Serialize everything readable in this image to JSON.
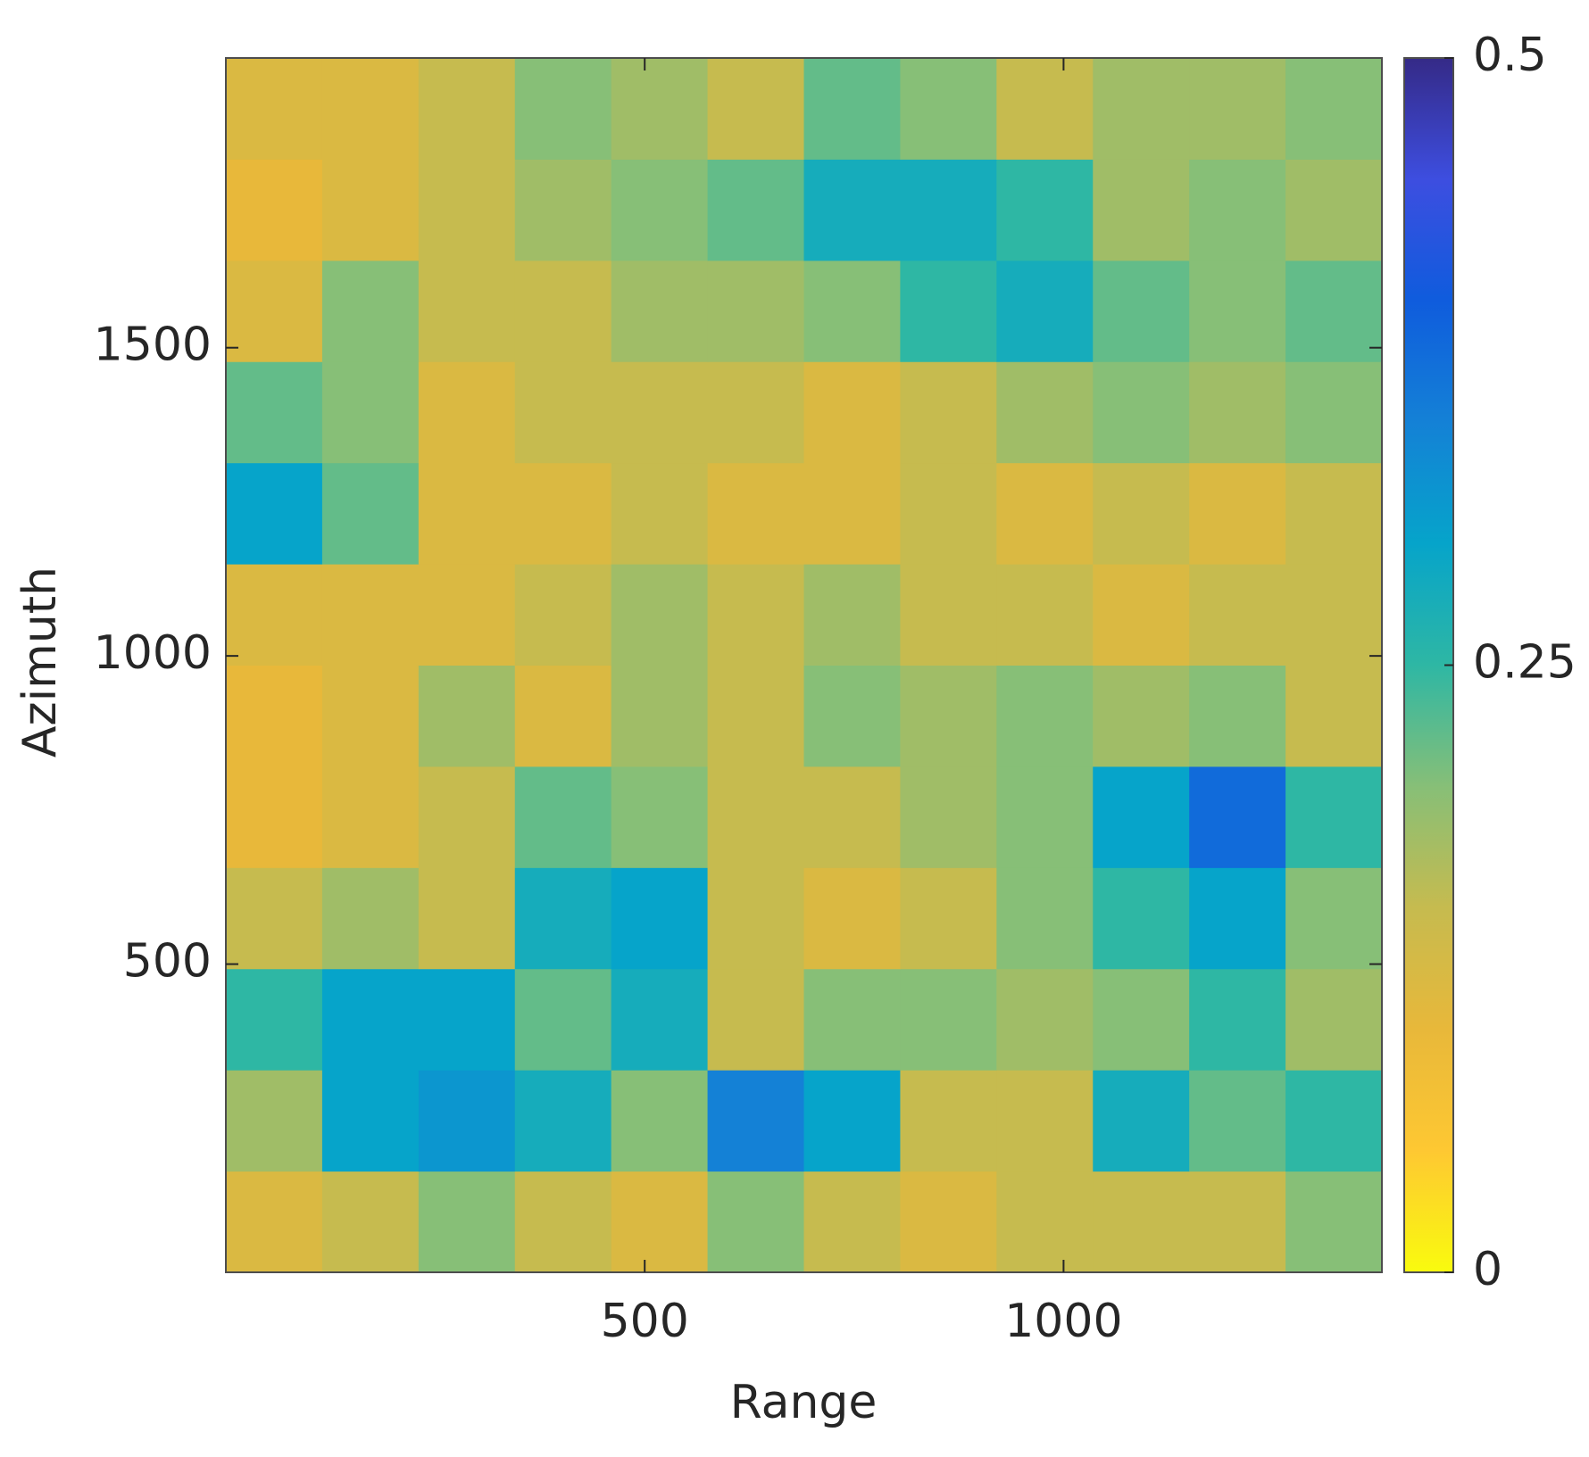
{
  "chart_data": {
    "type": "heatmap",
    "x_label": "Range",
    "y_label": "Azimuth",
    "xlim": [
      0,
      1380
    ],
    "ylim": [
      0,
      1970
    ],
    "xticks": [
      500,
      1000
    ],
    "yticks": [
      500,
      1000,
      1500
    ],
    "clim": [
      0,
      0.5
    ],
    "cticks": [
      0,
      0.25,
      0.5
    ],
    "colormap": [
      "#f9fb0e",
      "#fec832",
      "#e8b83a",
      "#c6bb4f",
      "#87bf77",
      "#2eb7a4",
      "#06a4ca",
      "#1481d6",
      "#0f5cdd",
      "#3d4ee0",
      "#352a87"
    ],
    "z": [
      [
        0.12,
        0.15,
        0.2,
        0.15,
        0.12,
        0.2,
        0.15,
        0.12,
        0.15,
        0.15,
        0.15,
        0.2
      ],
      [
        0.18,
        0.3,
        0.32,
        0.28,
        0.2,
        0.35,
        0.3,
        0.15,
        0.15,
        0.28,
        0.22,
        0.25
      ],
      [
        0.25,
        0.3,
        0.3,
        0.22,
        0.28,
        0.15,
        0.2,
        0.2,
        0.18,
        0.2,
        0.25,
        0.18
      ],
      [
        0.15,
        0.18,
        0.15,
        0.28,
        0.3,
        0.15,
        0.12,
        0.15,
        0.2,
        0.25,
        0.3,
        0.2
      ],
      [
        0.1,
        0.12,
        0.15,
        0.22,
        0.2,
        0.15,
        0.15,
        0.18,
        0.2,
        0.3,
        0.38,
        0.25
      ],
      [
        0.1,
        0.12,
        0.18,
        0.12,
        0.18,
        0.15,
        0.2,
        0.18,
        0.2,
        0.18,
        0.2,
        0.15
      ],
      [
        0.12,
        0.12,
        0.12,
        0.15,
        0.18,
        0.15,
        0.18,
        0.15,
        0.15,
        0.12,
        0.15,
        0.15
      ],
      [
        0.3,
        0.22,
        0.12,
        0.12,
        0.15,
        0.12,
        0.12,
        0.15,
        0.12,
        0.15,
        0.12,
        0.15
      ],
      [
        0.22,
        0.2,
        0.12,
        0.15,
        0.15,
        0.15,
        0.12,
        0.15,
        0.18,
        0.2,
        0.18,
        0.2
      ],
      [
        0.12,
        0.2,
        0.15,
        0.15,
        0.18,
        0.18,
        0.2,
        0.25,
        0.28,
        0.22,
        0.2,
        0.22
      ],
      [
        0.1,
        0.12,
        0.15,
        0.18,
        0.2,
        0.22,
        0.28,
        0.28,
        0.25,
        0.18,
        0.2,
        0.18
      ],
      [
        0.12,
        0.12,
        0.15,
        0.2,
        0.18,
        0.15,
        0.22,
        0.2,
        0.15,
        0.18,
        0.18,
        0.2
      ]
    ]
  }
}
